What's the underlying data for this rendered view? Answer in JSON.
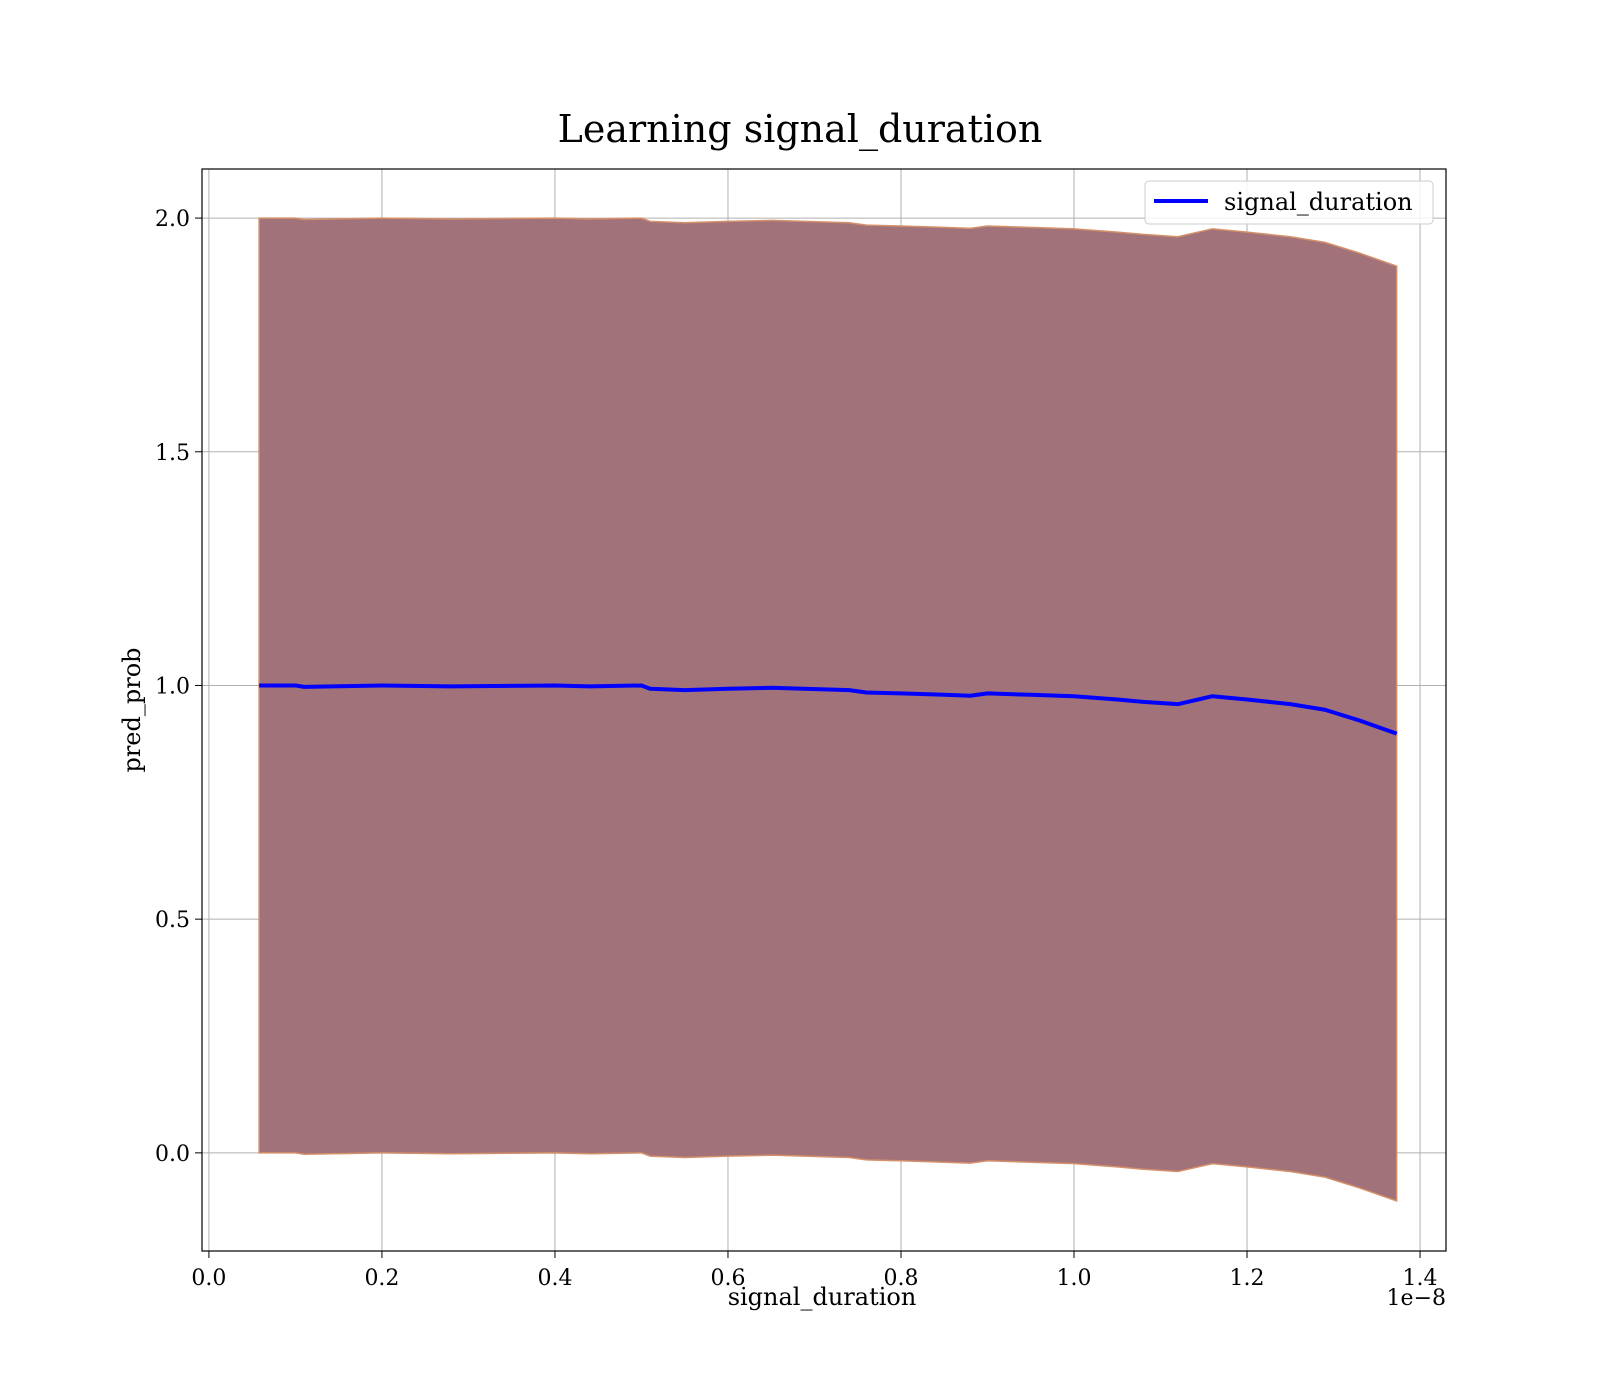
{
  "chart_data": {
    "type": "area",
    "title": "Learning signal_duration",
    "xlabel": "signal_duration",
    "ylabel": "pred_prob",
    "x_offset_label": "1e−8",
    "xlim": [
      -0.008,
      1.43
    ],
    "ylim": [
      -0.21,
      2.105
    ],
    "xticks": [
      0.0,
      0.2,
      0.4,
      0.6,
      0.8,
      1.0,
      1.2,
      1.4
    ],
    "xtick_labels": [
      "0.0",
      "0.2",
      "0.4",
      "0.6",
      "0.8",
      "1.0",
      "1.2",
      "1.4"
    ],
    "yticks": [
      0.0,
      0.5,
      1.0,
      1.5,
      2.0
    ],
    "ytick_labels": [
      "0.0",
      "0.5",
      "1.0",
      "1.5",
      "2.0"
    ],
    "grid": true,
    "legend_position": "top-right",
    "series": [
      {
        "name": "signal_duration",
        "color": "#0000ff",
        "x": [
          0.058,
          0.1,
          0.11,
          0.2,
          0.28,
          0.4,
          0.44,
          0.5,
          0.51,
          0.55,
          0.6,
          0.65,
          0.74,
          0.76,
          0.8,
          0.85,
          0.88,
          0.9,
          0.95,
          1.0,
          1.05,
          1.08,
          1.12,
          1.16,
          1.2,
          1.25,
          1.29,
          1.33,
          1.373
        ],
        "y": [
          1.0,
          1.0,
          0.997,
          1.0,
          0.998,
          1.0,
          0.998,
          1.0,
          0.993,
          0.99,
          0.993,
          0.995,
          0.99,
          0.985,
          0.983,
          0.98,
          0.978,
          0.983,
          0.98,
          0.977,
          0.97,
          0.965,
          0.96,
          0.977,
          0.97,
          0.96,
          0.948,
          0.925,
          0.897
        ]
      }
    ],
    "band": {
      "fill_color": "#a2727a",
      "edge_color": "#d4906a",
      "x": [
        0.058,
        0.1,
        0.11,
        0.2,
        0.28,
        0.4,
        0.44,
        0.5,
        0.51,
        0.55,
        0.6,
        0.65,
        0.74,
        0.76,
        0.8,
        0.85,
        0.88,
        0.9,
        0.95,
        1.0,
        1.05,
        1.08,
        1.12,
        1.16,
        1.2,
        1.25,
        1.29,
        1.33,
        1.373
      ],
      "upper": [
        2.0,
        2.0,
        1.997,
        2.0,
        1.998,
        2.0,
        1.998,
        2.0,
        1.993,
        1.99,
        1.993,
        1.995,
        1.99,
        1.985,
        1.983,
        1.98,
        1.978,
        1.983,
        1.98,
        1.977,
        1.97,
        1.965,
        1.96,
        1.977,
        1.97,
        1.96,
        1.948,
        1.925,
        1.897
      ],
      "lower": [
        0.0,
        0.0,
        -0.003,
        0.0,
        -0.002,
        0.0,
        -0.002,
        0.0,
        -0.007,
        -0.01,
        -0.007,
        -0.005,
        -0.01,
        -0.015,
        -0.017,
        -0.02,
        -0.022,
        -0.017,
        -0.02,
        -0.023,
        -0.03,
        -0.035,
        -0.04,
        -0.023,
        -0.03,
        -0.04,
        -0.052,
        -0.075,
        -0.103
      ]
    }
  }
}
